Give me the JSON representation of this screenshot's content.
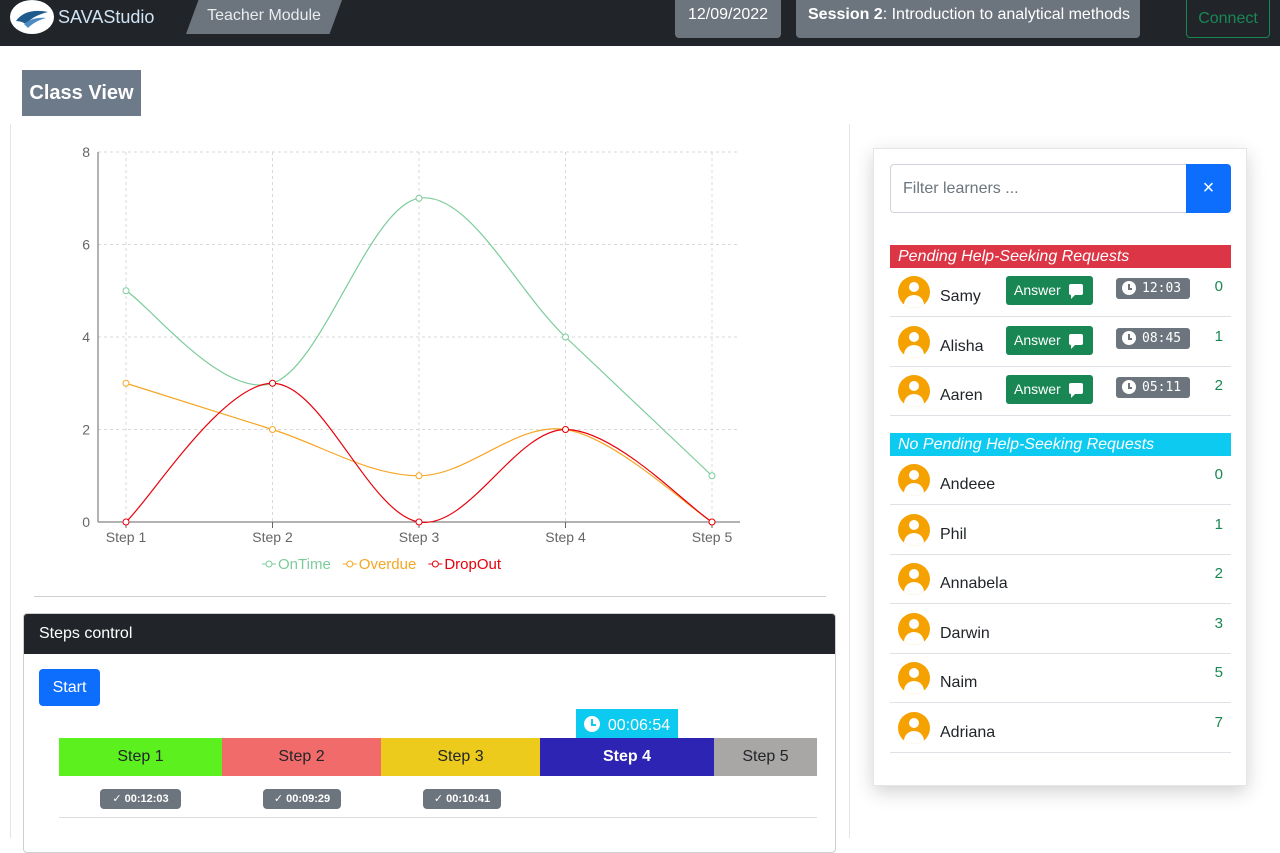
{
  "header": {
    "brand": "SAVAStudio",
    "module": "Teacher Module",
    "date": "12/09/2022",
    "session_label": "Session 2",
    "session_title": ": Introduction to analytical methods",
    "connect_label": "Connect"
  },
  "page": {
    "title": "Class View"
  },
  "chart_data": {
    "type": "line",
    "categories": [
      "Step 1",
      "Step 2",
      "Step 3",
      "Step 4",
      "Step 5"
    ],
    "ylim": [
      0,
      8
    ],
    "yticks": [
      0,
      2,
      4,
      6,
      8
    ],
    "grid": true,
    "legend_placement": "bottom",
    "series": [
      {
        "name": "OnTime",
        "color": "#7ccc9a",
        "values": [
          5,
          3,
          7,
          4,
          1
        ]
      },
      {
        "name": "Overdue",
        "color": "#f5a623",
        "values": [
          3,
          2,
          1,
          2,
          0
        ]
      },
      {
        "name": "DropOut",
        "color": "#e8000b",
        "values": [
          0,
          3,
          0,
          2,
          0
        ]
      }
    ]
  },
  "steps": {
    "header": "Steps control",
    "start_label": "Start",
    "current_timer": "00:06:54",
    "items": [
      {
        "label": "Step 1",
        "color": "#5cf01e",
        "done": "00:12:03"
      },
      {
        "label": "Step 2",
        "color": "#f26b6b",
        "done": "00:09:29"
      },
      {
        "label": "Step 3",
        "color": "#eccb1c",
        "done": "00:10:41"
      },
      {
        "label": "Step 4",
        "color": "#2d24b3",
        "active": true
      },
      {
        "label": "Step 5",
        "color": "#a9a6a6"
      }
    ]
  },
  "learners": {
    "filter_placeholder": "Filter learners ...",
    "clear_label": "×",
    "pending_header": "Pending Help-Seeking Requests",
    "no_pending_header": "No Pending Help-Seeking Requests",
    "answer_label": "Answer",
    "pending": [
      {
        "name": "Samy",
        "time": "12:03",
        "count": "0"
      },
      {
        "name": "Alisha",
        "time": "08:45",
        "count": "1"
      },
      {
        "name": "Aaren",
        "time": "05:11",
        "count": "2"
      }
    ],
    "others": [
      {
        "name": "Andeee",
        "count": "0"
      },
      {
        "name": "Phil",
        "count": "1"
      },
      {
        "name": "Annabela",
        "count": "2"
      },
      {
        "name": "Darwin",
        "count": "3"
      },
      {
        "name": "Naim",
        "count": "5"
      },
      {
        "name": "Adriana",
        "count": "7"
      }
    ]
  }
}
